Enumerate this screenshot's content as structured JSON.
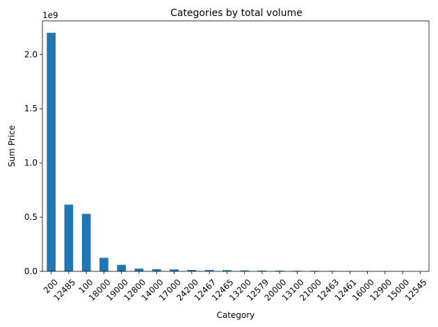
{
  "chart_data": {
    "type": "bar",
    "title": "Categories by total volume",
    "xlabel": "Category",
    "ylabel": "Sum Price",
    "y_scale_label": "1e9",
    "y_multiplier": 1000000000,
    "ylim": [
      0,
      2.31
    ],
    "yticks": [
      0.0,
      0.5,
      1.0,
      1.5,
      2.0
    ],
    "ytick_labels": [
      "0.0",
      "0.5",
      "1.0",
      "1.5",
      "2.0"
    ],
    "categories": [
      "200",
      "12485",
      "100",
      "18000",
      "19000",
      "12800",
      "14000",
      "17000",
      "24200",
      "12467",
      "12465",
      "13200",
      "12579",
      "20000",
      "13100",
      "21000",
      "12463",
      "12461",
      "16000",
      "12900",
      "15000",
      "12545"
    ],
    "values": [
      2.2,
      0.615,
      0.53,
      0.125,
      0.06,
      0.025,
      0.02,
      0.018,
      0.013,
      0.012,
      0.011,
      0.008,
      0.007,
      0.006,
      0.005,
      0.005,
      0.004,
      0.003,
      0.002,
      0.001,
      0.0008,
      0.0005
    ],
    "bar_color": "#1f77b4",
    "grid": false,
    "legend": "none"
  }
}
